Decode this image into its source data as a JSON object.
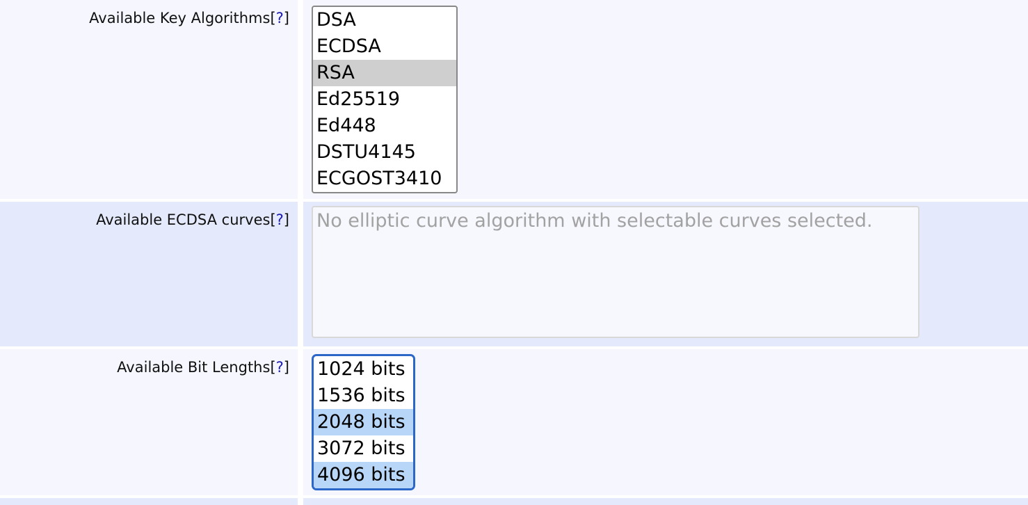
{
  "help_marker": "?",
  "rows": [
    {
      "label": "Available Key Algorithms",
      "options": [
        "DSA",
        "ECDSA",
        "RSA",
        "Ed25519",
        "Ed448",
        "DSTU4145",
        "ECGOST3410"
      ],
      "selected": [
        "RSA"
      ]
    },
    {
      "label": "Available ECDSA curves",
      "placeholder": "No elliptic curve algorithm with selectable curves selected."
    },
    {
      "label": "Available Bit Lengths",
      "options": [
        "1024 bits",
        "1536 bits",
        "2048 bits",
        "3072 bits",
        "4096 bits"
      ],
      "selected": [
        "2048 bits",
        "4096 bits"
      ]
    }
  ]
}
